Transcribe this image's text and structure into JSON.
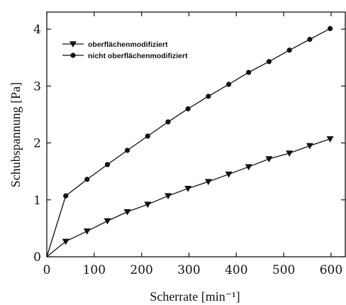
{
  "chart_data": {
    "type": "line",
    "title": "",
    "xlabel": "Scherrate [min⁻¹]",
    "ylabel": "Schubspannung [Pa]",
    "xlim": [
      0,
      630
    ],
    "ylim": [
      0,
      4.3
    ],
    "xticks": [
      0,
      100,
      200,
      300,
      400,
      500,
      600
    ],
    "yticks": [
      0,
      1,
      2,
      3,
      4
    ],
    "grid": false,
    "legend_position": "top-left",
    "series": [
      {
        "name": "oberflächenmodifiziert",
        "marker": "triangle-down",
        "color": "#111111",
        "x": [
          0,
          40,
          85,
          128,
          170,
          213,
          256,
          298,
          341,
          384,
          426,
          469,
          512,
          555,
          598
        ],
        "y": [
          0,
          0.27,
          0.45,
          0.63,
          0.79,
          0.92,
          1.07,
          1.2,
          1.32,
          1.45,
          1.58,
          1.72,
          1.82,
          1.95,
          2.07
        ]
      },
      {
        "name": "nicht oberflächenmodifiziert",
        "marker": "circle",
        "color": "#111111",
        "x": [
          0,
          40,
          85,
          128,
          170,
          213,
          256,
          298,
          341,
          384,
          426,
          469,
          512,
          555,
          598
        ],
        "y": [
          0,
          1.07,
          1.36,
          1.62,
          1.87,
          2.12,
          2.37,
          2.6,
          2.82,
          3.03,
          3.24,
          3.43,
          3.63,
          3.82,
          4.01
        ]
      }
    ]
  }
}
